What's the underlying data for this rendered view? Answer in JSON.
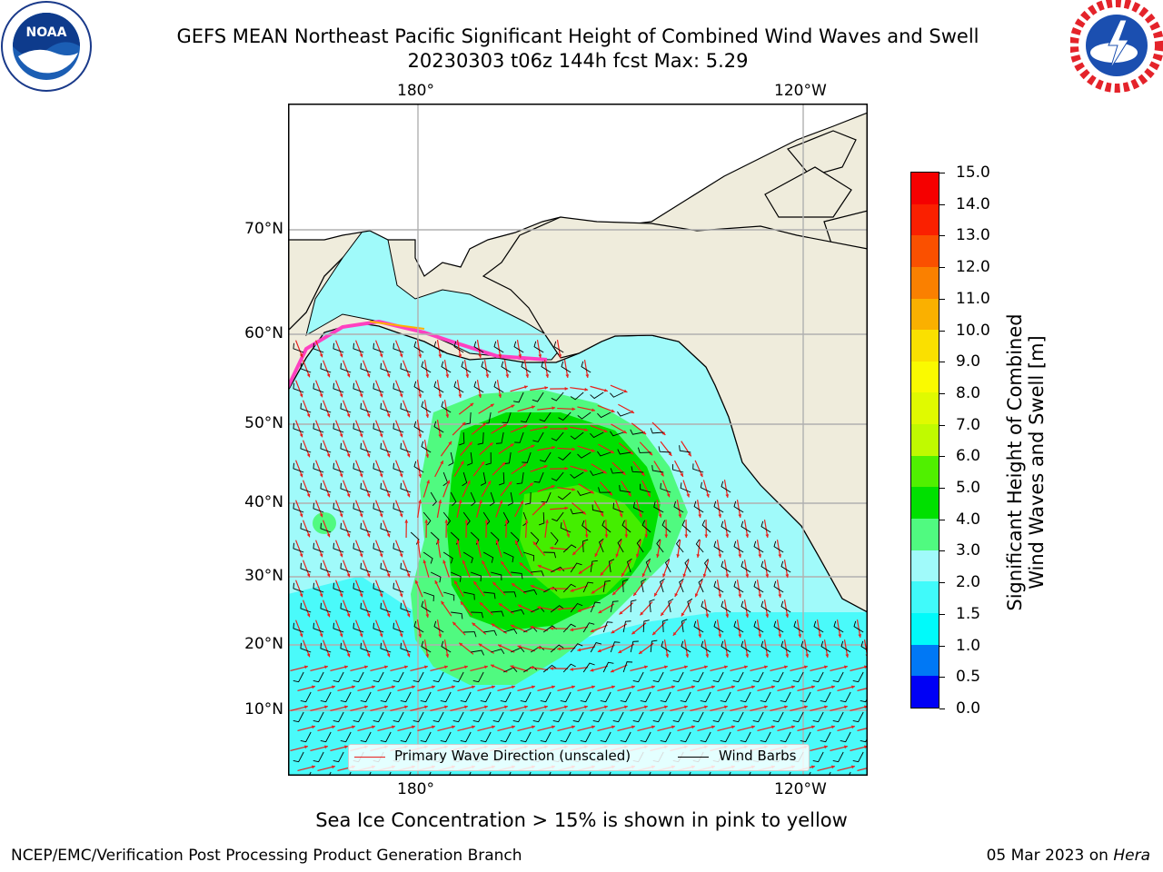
{
  "header": {
    "title_line_1": "GEFS MEAN Northeast Pacific Significant Height of Combined Wind Waves and Swell",
    "title_line_2": "20230303 t06z 144h fcst   Max: 5.29"
  },
  "logos": {
    "left": {
      "name": "noaa-logo",
      "text": "NOAA",
      "ring_text": "NATIONAL OCEANIC AND ATMOSPHERIC ADMINISTRATION · U.S. DEPARTMENT OF COMMERCE"
    },
    "right": {
      "name": "national-weather-service-logo",
      "ring_text": "NATIONAL WEATHER SERVICE"
    }
  },
  "map": {
    "lon_labels_top": [
      "180°",
      "120°W"
    ],
    "lon_labels_bottom": [
      "180°",
      "120°W"
    ],
    "lat_labels": [
      "70°N",
      "60°N",
      "50°N",
      "40°N",
      "30°N",
      "20°N",
      "10°N"
    ],
    "land_color": "#efecdc",
    "grid_color": "#b0b0b0",
    "arrow_color": "#e8201c",
    "barb_color": "#000000",
    "max_value": 5.29
  },
  "legend": {
    "wave_direction": "Primary Wave Direction (unscaled)",
    "wind_barbs": "Wind Barbs"
  },
  "colorbar": {
    "label_line_1": "Significant Height of Combined",
    "label_line_2": "Wind Waves and Swell [m]",
    "ticks": [
      "0.0",
      "0.5",
      "1.0",
      "1.5",
      "2.0",
      "3.0",
      "4.0",
      "5.0",
      "6.0",
      "7.0",
      "8.0",
      "9.0",
      "10.0",
      "11.0",
      "12.0",
      "13.0",
      "14.0",
      "15.0"
    ],
    "colors": [
      "#0000f5",
      "#0078f5",
      "#00fafa",
      "#40fafa",
      "#a0fafa",
      "#50fa80",
      "#00e000",
      "#50f000",
      "#c0fa00",
      "#e0fa00",
      "#fafa00",
      "#fae000",
      "#fab000",
      "#fa8000",
      "#fa5000",
      "#fa2000",
      "#f50000"
    ]
  },
  "footer": {
    "note": "Sea Ice Concentration > 15% is shown in pink to yellow",
    "credit": "NCEP/EMC/Verification Post Processing Product Generation Branch",
    "date": "05 Mar 2023",
    "on_word": "on",
    "machine": "Hera"
  }
}
